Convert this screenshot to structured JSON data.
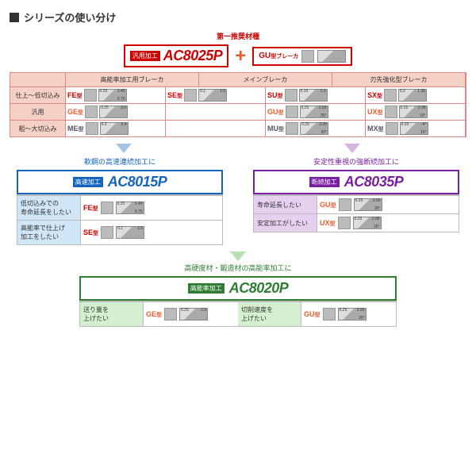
{
  "title": "シリーズの使い分け",
  "top": {
    "rec_label": "第一推奨材種",
    "main_box": {
      "tag": "汎用加工",
      "code": "AC8025P",
      "border": "#c00",
      "tag_bg": "#c00",
      "code_color": "#c00"
    },
    "sec_box": {
      "type": "GU",
      "type_suffix": "型ブレーカ",
      "sub": "第一推奨",
      "border": "#c00"
    }
  },
  "table": {
    "headers": [
      "",
      "高能率加工用ブレーカ",
      "メインブレーカ",
      "刃先強化型ブレーカ"
    ],
    "rows": [
      {
        "label": "仕上～低切込み",
        "cells": [
          {
            "type": "FE",
            "color": "#c00",
            "n1": "0.25",
            "n2": "1.40",
            "n3": "0.70"
          },
          {
            "type": "SE",
            "color": "#c00",
            "n1": "0.1",
            "n2": "1.5"
          },
          {
            "type": "SU",
            "color": "#c00",
            "n1": "0.15",
            "n2": "1.3"
          },
          {
            "type": "SX",
            "color": "#c00",
            "n1": "0.2",
            "n2": "1.35"
          }
        ]
      },
      {
        "label": "汎用",
        "cells": [
          {
            "type": "GE",
            "color": "#e85d2e",
            "n1": "0.25",
            "n2": "2.0"
          },
          {
            "type": "",
            "color": ""
          },
          {
            "type": "GU",
            "color": "#e85d2e",
            "n1": "0.25",
            "n2": "2.05",
            "n3": "25°"
          },
          {
            "type": "UX",
            "color": "#e85d2e",
            "n1": "0.25",
            "n2": "2.05",
            "n3": "16°"
          }
        ]
      },
      {
        "label": "粗～大切込み",
        "cells": [
          {
            "type": "ME",
            "color": "#556",
            "n1": "0.3",
            "n2": "2.4"
          },
          {
            "type": "",
            "color": ""
          },
          {
            "type": "MU",
            "color": "#556",
            "n1": "0.25",
            "n2": "2.05",
            "n3": "20°"
          },
          {
            "type": "MX",
            "color": "#556",
            "n1": "0.25",
            "n2": "-4°",
            "n3": "15°"
          }
        ]
      }
    ]
  },
  "subs": {
    "left": {
      "title": "軟鋼の高速連続加工に",
      "title_color": "#1565c0",
      "box": {
        "tag": "高速加工",
        "code": "AC8015P",
        "border": "#1565c0",
        "tag_bg": "#1565c0",
        "code_color": "#1565c0"
      },
      "rows": [
        {
          "label": "低切込みでの\n寿命延長をしたい",
          "type": "FE",
          "color": "#c00",
          "n1": "0.25",
          "n2": "1.40",
          "n3": "0.70"
        },
        {
          "label": "高能率で仕上げ\n加工をしたい",
          "type": "SE",
          "color": "#c00",
          "n1": "0.1",
          "n2": "1.5"
        }
      ]
    },
    "right": {
      "title": "安定性重視の強断続加工に",
      "title_color": "#7b1fa2",
      "box": {
        "tag": "断続加工",
        "code": "AC8035P",
        "border": "#7b1fa2",
        "tag_bg": "#7b1fa2",
        "code_color": "#7b1fa2"
      },
      "rows": [
        {
          "label": "寿命延長したい",
          "type": "GU",
          "color": "#e85d2e",
          "n1": "0.25",
          "n2": "2.05",
          "n3": "25°"
        },
        {
          "label": "安定加工がしたい",
          "type": "UX",
          "color": "#e85d2e",
          "n1": "0.25",
          "n2": "2.05",
          "n3": "16°"
        }
      ]
    },
    "bottom": {
      "title": "高硬度材・鍛造材の高能率加工に",
      "title_color": "#2e7d32",
      "box": {
        "tag": "高能率加工",
        "code": "AC8020P",
        "border": "#2e7d32",
        "tag_bg": "#2e7d32",
        "code_color": "#2e7d32"
      },
      "rows": [
        {
          "label": "送り量を\n上げたい",
          "type": "GE",
          "color": "#e85d2e",
          "n1": "0.25",
          "n2": "2.0"
        },
        {
          "label": "切削速度を\n上げたい",
          "type": "GU",
          "color": "#e85d2e",
          "n1": "0.25",
          "n2": "2.05",
          "n3": "25°"
        }
      ]
    }
  },
  "arrow_colors": {
    "left": "#a5c5e5",
    "right": "#d5b5e0",
    "center": "#b5e0b0"
  }
}
